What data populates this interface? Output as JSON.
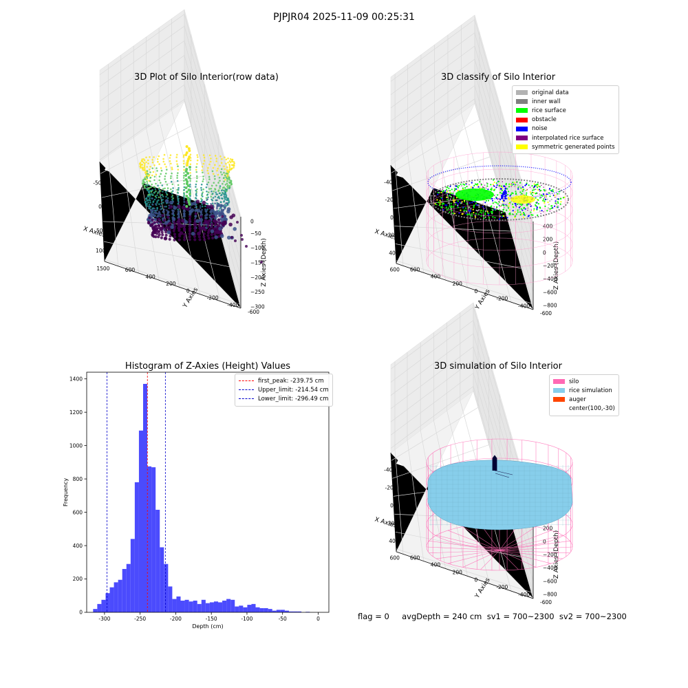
{
  "figure": {
    "suptitle": "PJPJR04 2025-11-09 00:25:31",
    "info_text": "flag = 0     avgDepth = 240 cm  sv1 = 700~2300  sv2 = 700~2300"
  },
  "chart_data": [
    {
      "type": "scatter3d",
      "title": "3D Plot of Silo Interior(row data)",
      "xlabel": "X Axies",
      "ylabel": "Y Axies",
      "zlabel": "Z Axies (Depth)",
      "xticks": [
        "-500",
        "0",
        "500",
        "1000",
        "1500"
      ],
      "yticks": [
        "-600",
        "-400",
        "-200",
        "0",
        "200",
        "400",
        "600"
      ],
      "zticks": [
        "0",
        "−50",
        "−100",
        "−150",
        "−200",
        "−250",
        "−300"
      ],
      "xlim": [
        -650,
        1650
      ],
      "ylim": [
        -700,
        700
      ],
      "zlim": [
        -340,
        10
      ],
      "colormap": [
        "#440154",
        "#3b528b",
        "#21918c",
        "#5ec962",
        "#fde725"
      ],
      "grid": true
    },
    {
      "type": "scatter3d",
      "title": "3D classify of Silo Interior",
      "xlabel": "X Axies",
      "ylabel": "Y Axies",
      "zlabel": "Z Axies (Depth)",
      "xticks": [
        "-400",
        "-200",
        "0",
        "200",
        "400",
        "600"
      ],
      "yticks": [
        "-600",
        "-400",
        "-200",
        "0",
        "200",
        "400",
        "600"
      ],
      "zticks": [
        "400",
        "200",
        "0",
        "−200",
        "−400",
        "−600",
        "−800"
      ],
      "legend_placement": "top-right",
      "legend": [
        {
          "label": "original data",
          "color": "#b3b3b3"
        },
        {
          "label": "inner wall",
          "color": "#808080"
        },
        {
          "label": "rice surface",
          "color": "#00ff00"
        },
        {
          "label": "obstacle",
          "color": "#ff0000"
        },
        {
          "label": "noise",
          "color": "#0000ff"
        },
        {
          "label": "interpolated rice surface",
          "color": "#800080"
        },
        {
          "label": "symmetric generated points",
          "color": "#ffff00"
        }
      ],
      "wire_color": "#ff99cc",
      "grid": true
    },
    {
      "type": "bar",
      "title": "Histogram of Z-Axies (Height) Values",
      "xlabel": "Depth (cm)",
      "ylabel": "Frequency",
      "bar_color": "#4b4bfd",
      "xlim": [
        -325,
        15
      ],
      "ylim": [
        0,
        1440
      ],
      "xticks": [
        -300,
        -250,
        -200,
        -150,
        -100,
        -50,
        0
      ],
      "yticks": [
        0,
        200,
        400,
        600,
        800,
        1000,
        1200,
        1400
      ],
      "bin_start": -316,
      "bin_width": 5.85,
      "values": [
        20,
        50,
        75,
        115,
        150,
        180,
        195,
        260,
        290,
        440,
        780,
        1090,
        1370,
        875,
        870,
        615,
        390,
        290,
        155,
        80,
        95,
        70,
        75,
        65,
        70,
        50,
        75,
        55,
        60,
        65,
        60,
        70,
        80,
        75,
        35,
        40,
        30,
        45,
        50,
        30,
        25,
        25,
        20,
        10,
        15,
        15,
        10,
        5,
        5,
        5,
        0,
        3
      ],
      "vlines": [
        {
          "value": -239.75,
          "color": "#ff0000",
          "label": "first_peak: -239.75 cm"
        },
        {
          "value": -214.54,
          "color": "#0000cc",
          "label": "Upper_limit: -214.54 cm"
        },
        {
          "value": -296.49,
          "color": "#0000cc",
          "label": "Lower_limit: -296.49 cm"
        }
      ],
      "legend_placement": "top-right",
      "grid": false
    },
    {
      "type": "surface3d",
      "title": "3D simulation of Silo Interior",
      "xlabel": "X Axies",
      "ylabel": "Y Axies",
      "zlabel": "Z Axies (Depth)",
      "xticks": [
        "-400",
        "-200",
        "0",
        "200",
        "400",
        "600"
      ],
      "yticks": [
        "-600",
        "-400",
        "-200",
        "0",
        "200",
        "400",
        "600"
      ],
      "zticks": [
        "400",
        "200",
        "0",
        "−200",
        "−400",
        "−600",
        "−800"
      ],
      "legend_placement": "top-right",
      "legend": [
        {
          "label": "silo",
          "color": "#ff69b4"
        },
        {
          "label": "rice simulation",
          "color": "#87ceeb"
        },
        {
          "label": "auger",
          "color": "#ff4500"
        },
        {
          "label": "center(100,-30)",
          "color": ""
        }
      ],
      "grid": true
    }
  ]
}
